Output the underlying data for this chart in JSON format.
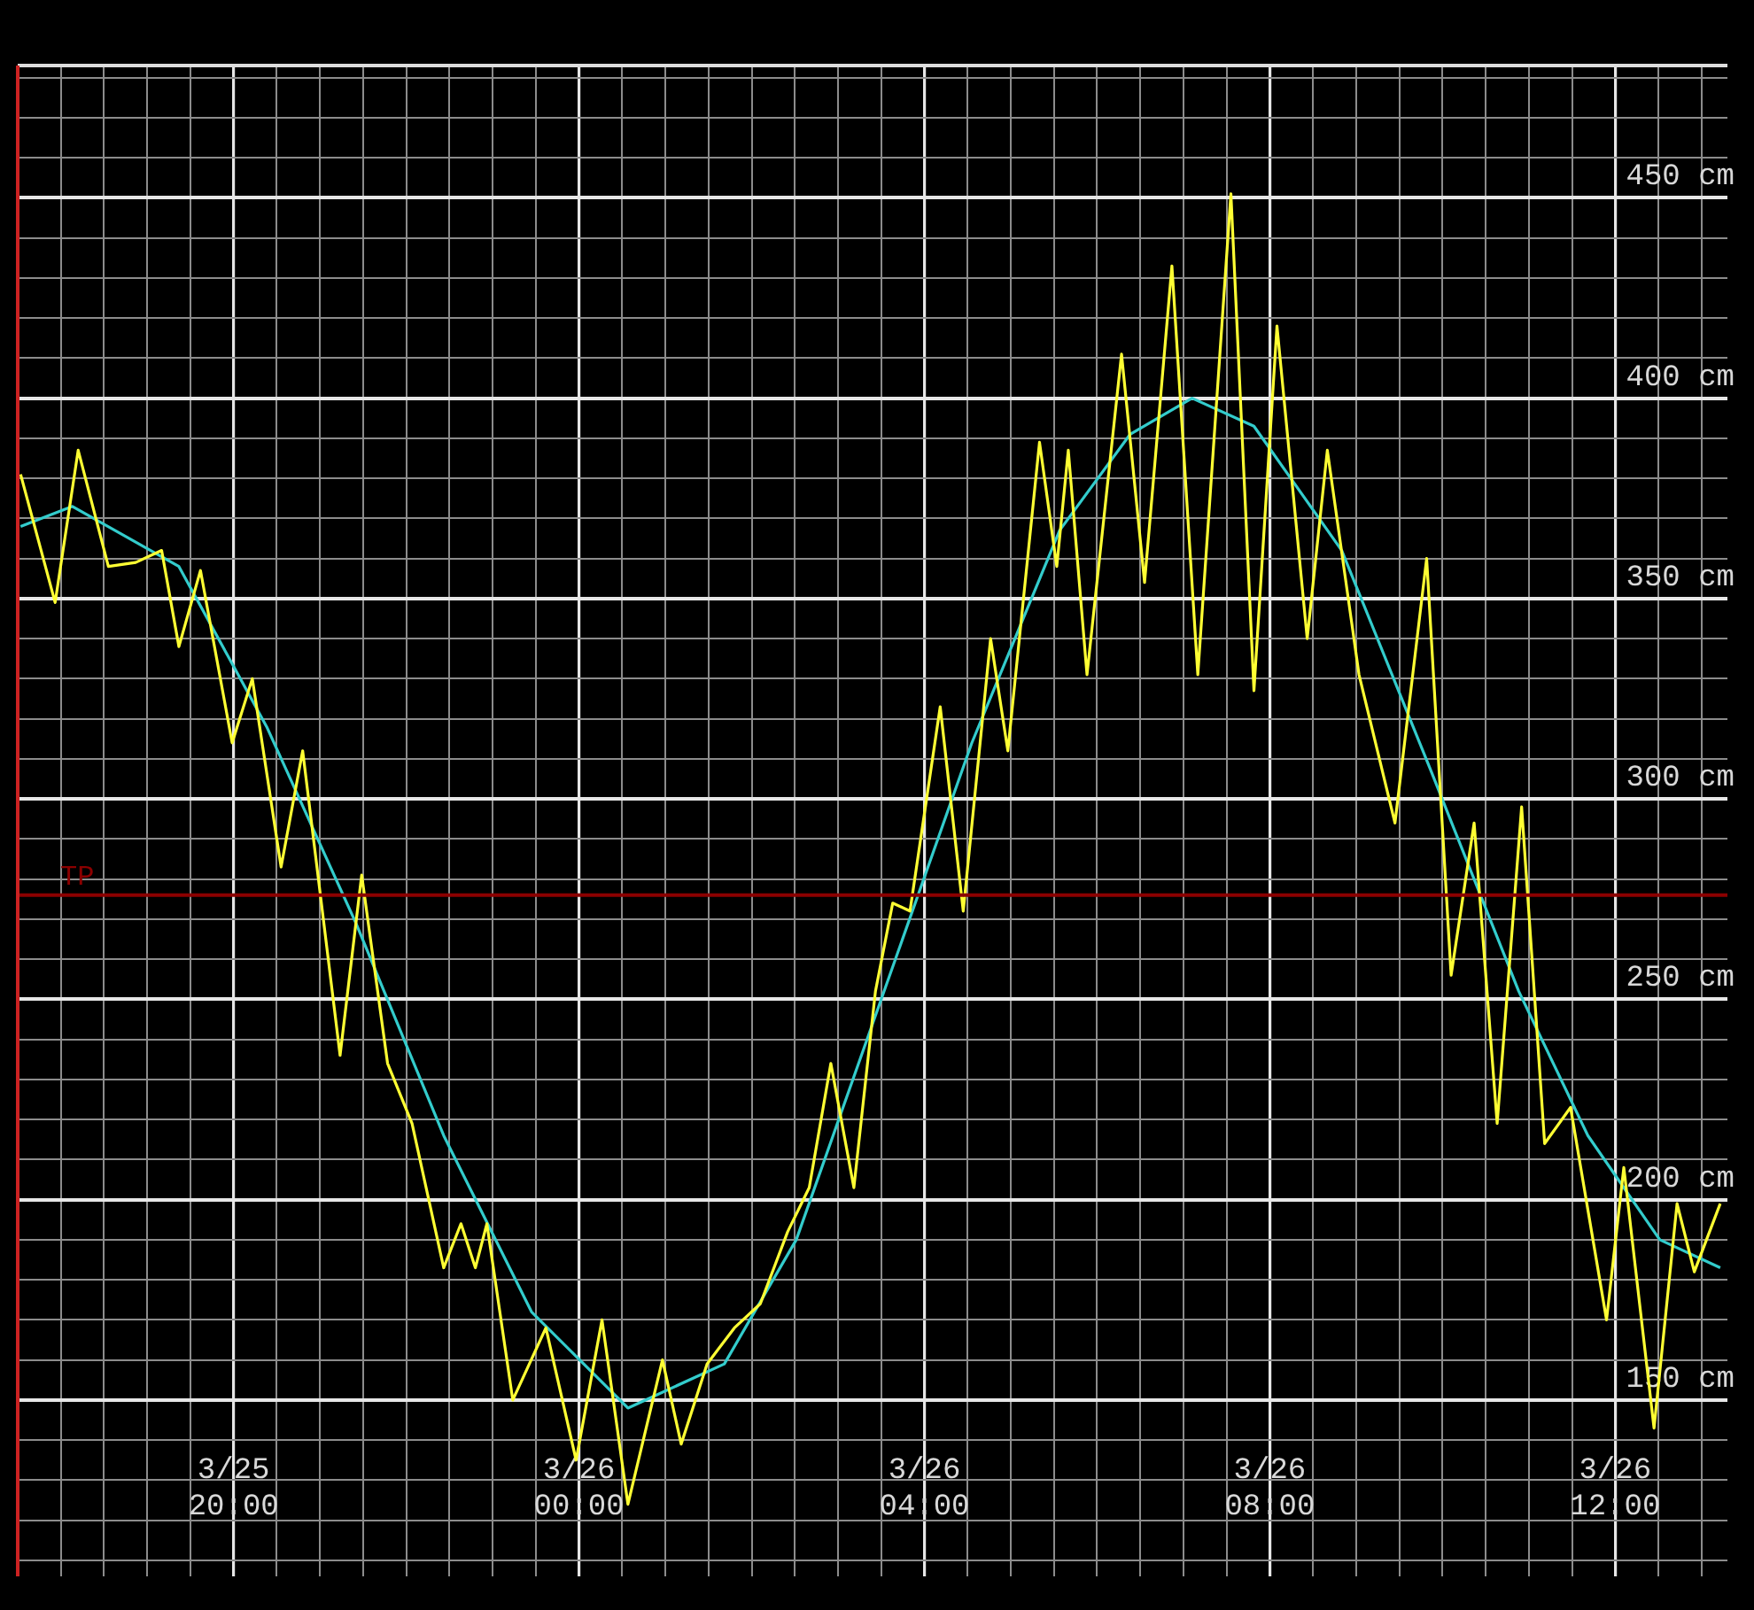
{
  "chart_data": {
    "type": "line",
    "xlim": [
      "--03-25T17:30",
      "--03-26T13:18"
    ],
    "ylim": [
      106,
      483
    ],
    "xticks": [
      {
        "value": "--03-25T17:30",
        "label": null
      },
      {
        "value": "--03-25T18:00",
        "label": null
      },
      {
        "value": "--03-25T18:30",
        "label": null
      },
      {
        "value": "--03-25T19:00",
        "label": null
      },
      {
        "value": "--03-25T19:30",
        "label": null
      },
      {
        "value": "--03-25T20:00",
        "label": "3/25\n20:00"
      },
      {
        "value": "--03-25T20:30",
        "label": null
      },
      {
        "value": "--03-25T21:00",
        "label": null
      },
      {
        "value": "--03-25T21:30",
        "label": null
      },
      {
        "value": "--03-25T22:00",
        "label": null
      },
      {
        "value": "--03-25T22:30",
        "label": null
      },
      {
        "value": "--03-25T23:00",
        "label": null
      },
      {
        "value": "--03-25T23:30",
        "label": null
      },
      {
        "value": "--03-26T00:00",
        "label": "3/26\n00:00"
      },
      {
        "value": "--03-26T00:30",
        "label": null
      },
      {
        "value": "--03-26T01:00",
        "label": null
      },
      {
        "value": "--03-26T01:30",
        "label": null
      },
      {
        "value": "--03-26T02:00",
        "label": null
      },
      {
        "value": "--03-26T02:30",
        "label": null
      },
      {
        "value": "--03-26T03:00",
        "label": null
      },
      {
        "value": "--03-26T03:30",
        "label": null
      },
      {
        "value": "--03-26T04:00",
        "label": "3/26\n04:00"
      },
      {
        "value": "--03-26T04:30",
        "label": null
      },
      {
        "value": "--03-26T05:00",
        "label": null
      },
      {
        "value": "--03-26T05:30",
        "label": null
      },
      {
        "value": "--03-26T06:00",
        "label": null
      },
      {
        "value": "--03-26T06:30",
        "label": null
      },
      {
        "value": "--03-26T07:00",
        "label": null
      },
      {
        "value": "--03-26T07:30",
        "label": null
      },
      {
        "value": "--03-26T08:00",
        "label": "3/26\n08:00"
      },
      {
        "value": "--03-26T08:30",
        "label": null
      },
      {
        "value": "--03-26T09:00",
        "label": null
      },
      {
        "value": "--03-26T09:30",
        "label": null
      },
      {
        "value": "--03-26T10:00",
        "label": null
      },
      {
        "value": "--03-26T10:30",
        "label": null
      },
      {
        "value": "--03-26T11:00",
        "label": null
      },
      {
        "value": "--03-26T11:30",
        "label": null
      },
      {
        "value": "--03-26T12:00",
        "label": "3/26\n12:00"
      },
      {
        "value": "--03-26T12:30",
        "label": null
      },
      {
        "value": "--03-26T13:00",
        "label": null
      }
    ],
    "yticks": [
      {
        "value": 110,
        "label": null
      },
      {
        "value": 120,
        "label": null
      },
      {
        "value": 130,
        "label": null
      },
      {
        "value": 140,
        "label": null
      },
      {
        "value": 150,
        "label": "150 cm"
      },
      {
        "value": 160,
        "label": null
      },
      {
        "value": 170,
        "label": null
      },
      {
        "value": 180,
        "label": null
      },
      {
        "value": 190,
        "label": null
      },
      {
        "value": 200,
        "label": "200 cm"
      },
      {
        "value": 210,
        "label": null
      },
      {
        "value": 220,
        "label": null
      },
      {
        "value": 230,
        "label": null
      },
      {
        "value": 240,
        "label": null
      },
      {
        "value": 250,
        "label": "250 cm"
      },
      {
        "value": 260,
        "label": null
      },
      {
        "value": 270,
        "label": null
      },
      {
        "value": 280,
        "label": null
      },
      {
        "value": 290,
        "label": null
      },
      {
        "value": 300,
        "label": "300 cm"
      },
      {
        "value": 310,
        "label": null
      },
      {
        "value": 320,
        "label": null
      },
      {
        "value": 330,
        "label": null
      },
      {
        "value": 340,
        "label": null
      },
      {
        "value": 350,
        "label": "350 cm"
      },
      {
        "value": 360,
        "label": null
      },
      {
        "value": 370,
        "label": null
      },
      {
        "value": 380,
        "label": null
      },
      {
        "value": 390,
        "label": null
      },
      {
        "value": 400,
        "label": "400 cm"
      },
      {
        "value": 410,
        "label": null
      },
      {
        "value": 420,
        "label": null
      },
      {
        "value": 430,
        "label": null
      },
      {
        "value": 440,
        "label": null
      },
      {
        "value": 450,
        "label": "450 cm"
      },
      {
        "value": 460,
        "label": null
      },
      {
        "value": 470,
        "label": null
      },
      {
        "value": 480,
        "label": null
      }
    ],
    "grid": true,
    "legend": false,
    "marker": "none",
    "line_style": "solid",
    "ref_lines": [
      {
        "axis": "y",
        "value": 276,
        "label": "TP",
        "color": "#8b0000"
      }
    ],
    "series": [
      {
        "color": "#ffff33",
        "x": [
          "--03-25T17:32",
          "--03-25T17:56",
          "--03-25T18:12",
          "--03-25T18:33",
          "--03-25T18:52",
          "--03-25T19:10",
          "--03-25T19:22",
          "--03-25T19:37",
          "--03-25T19:59",
          "--03-25T20:13",
          "--03-25T20:33",
          "--03-25T20:48",
          "--03-25T21:14",
          "--03-25T21:29",
          "--03-25T21:47",
          "--03-25T22:04",
          "--03-25T22:26",
          "--03-25T22:38",
          "--03-25T22:48",
          "--03-25T22:56",
          "--03-25T23:14",
          "--03-25T23:37",
          "--03-25T23:58",
          "--03-26T00:16",
          "--03-26T00:34",
          "--03-26T00:58",
          "--03-26T01:11",
          "--03-26T01:29",
          "--03-26T01:48",
          "--03-26T02:06",
          "--03-26T02:25",
          "--03-26T02:40",
          "--03-26T02:55",
          "--03-26T03:11",
          "--03-26T03:26",
          "--03-26T03:38",
          "--03-26T03:50",
          "--03-26T04:11",
          "--03-26T04:27",
          "--03-26T04:46",
          "--03-26T04:58",
          "--03-26T05:20",
          "--03-26T05:32",
          "--03-26T05:40",
          "--03-26T05:53",
          "--03-26T06:17",
          "--03-26T06:33",
          "--03-26T06:52",
          "--03-26T07:10",
          "--03-26T07:33",
          "--03-26T07:49",
          "--03-26T08:05",
          "--03-26T08:26",
          "--03-26T08:40",
          "--03-26T09:02",
          "--03-26T09:27",
          "--03-26T09:49",
          "--03-26T10:06",
          "--03-26T10:22",
          "--03-26T10:38",
          "--03-26T10:55",
          "--03-26T11:11",
          "--03-26T11:29",
          "--03-26T11:54",
          "--03-26T12:06",
          "--03-26T12:27",
          "--03-26T12:43",
          "--03-26T12:55",
          "--03-26T13:13"
        ],
        "values": [
          381,
          349,
          387,
          358,
          359,
          362,
          338,
          357,
          314,
          330,
          283,
          312,
          236,
          281,
          234,
          219,
          183,
          194,
          183,
          194,
          150,
          168,
          135,
          170,
          124,
          160,
          139,
          159,
          168,
          174,
          192,
          203,
          234,
          203,
          252,
          274,
          272,
          323,
          272,
          340,
          312,
          389,
          358,
          387,
          331,
          411,
          354,
          433,
          331,
          451,
          327,
          418,
          340,
          387,
          331,
          294,
          360,
          256,
          294,
          219,
          298,
          214,
          223,
          170,
          208,
          143,
          199,
          182,
          199
        ]
      },
      {
        "color": "#33cccc",
        "x": [
          "--03-25T17:32",
          "--03-25T18:08",
          "--03-25T19:22",
          "--03-25T20:23",
          "--03-25T21:25",
          "--03-25T22:26",
          "--03-25T23:27",
          "--03-26T00:34",
          "--03-26T01:41",
          "--03-26T02:31",
          "--03-26T03:32",
          "--03-26T04:33",
          "--03-26T05:34",
          "--03-26T06:23",
          "--03-26T07:06",
          "--03-26T07:49",
          "--03-26T08:50",
          "--03-26T09:52",
          "--03-26T10:53",
          "--03-26T11:41",
          "--03-26T12:31",
          "--03-26T13:13"
        ],
        "values": [
          368,
          373,
          358,
          318,
          269,
          216,
          172,
          148,
          159,
          190,
          252,
          314,
          367,
          391,
          400,
          393,
          362,
          307,
          252,
          216,
          190,
          183
        ]
      }
    ]
  }
}
